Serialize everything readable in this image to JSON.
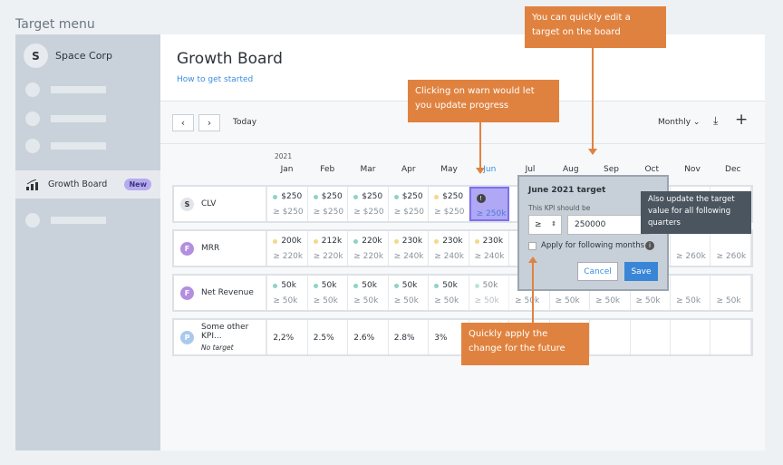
{
  "menu_title": "Target menu",
  "sidebar": {
    "org_initial": "S",
    "org_name": "Space Corp",
    "active_item": {
      "label": "Growth Board",
      "badge": "New",
      "icon": "bar-chart-icon"
    }
  },
  "header": {
    "title": "Growth Board",
    "help_link": "How to get started"
  },
  "toolbar": {
    "prev": "‹",
    "next": "›",
    "today": "Today",
    "period": "Monthly",
    "period_chevron": "⌄",
    "download": "⤓",
    "add": "+"
  },
  "year": "2021",
  "months": [
    "Jan",
    "Feb",
    "Mar",
    "Apr",
    "May",
    "Jun",
    "Jul",
    "Aug",
    "Sep",
    "Oct",
    "Nov",
    "Dec"
  ],
  "colors": {
    "on_track": "#8fd3c4",
    "at_risk": "#f3d98a",
    "accent": "#e0823f"
  },
  "rows": [
    {
      "initial": "S",
      "avatar_color": "#e1e5ea",
      "avatar_text": "#333",
      "name": "CLV",
      "sub": "",
      "cells": [
        {
          "v": "$250",
          "s": "on_track",
          "t": "≥ $250"
        },
        {
          "v": "$250",
          "s": "on_track",
          "t": "≥ $250"
        },
        {
          "v": "$250",
          "s": "on_track",
          "t": "≥ $250"
        },
        {
          "v": "$250",
          "s": "on_track",
          "t": "≥ $250"
        },
        {
          "v": "$250",
          "s": "at_risk",
          "t": "≥ $250"
        },
        {
          "warn": true,
          "t": "≥ 250k"
        },
        null,
        null,
        null,
        null,
        null,
        null
      ]
    },
    {
      "initial": "F",
      "avatar_color": "#b48ee0",
      "avatar_text": "#fff",
      "name": "MRR",
      "sub": "",
      "cells": [
        {
          "v": "200k",
          "s": "at_risk",
          "t": "≥ 220k"
        },
        {
          "v": "212k",
          "s": "at_risk",
          "t": "≥ 220k"
        },
        {
          "v": "220k",
          "s": "on_track",
          "t": "≥ 220k"
        },
        {
          "v": "230k",
          "s": "at_risk",
          "t": "≥ 240k"
        },
        {
          "v": "230k",
          "s": "at_risk",
          "t": "≥ 240k"
        },
        {
          "v": "230k",
          "s": "at_risk",
          "t": "≥ 240k"
        },
        null,
        null,
        null,
        null,
        {
          "t": "≥ 260k"
        },
        {
          "t": "≥ 260k"
        }
      ]
    },
    {
      "initial": "F",
      "avatar_color": "#b48ee0",
      "avatar_text": "#fff",
      "name": "Net Revenue",
      "sub": "",
      "cells": [
        {
          "v": "50k",
          "s": "on_track",
          "t": "≥ 50k"
        },
        {
          "v": "50k",
          "s": "on_track",
          "t": "≥ 50k"
        },
        {
          "v": "50k",
          "s": "on_track",
          "t": "≥ 50k"
        },
        {
          "v": "50k",
          "s": "on_track",
          "t": "≥ 50k"
        },
        {
          "v": "50k",
          "s": "on_track",
          "t": "≥ 50k"
        },
        {
          "v": "50k",
          "s": "on_track",
          "t": "≥ 50k"
        },
        {
          "t": "≥ 50k"
        },
        {
          "t": "≥ 50k"
        },
        {
          "t": "≥ 50k"
        },
        {
          "t": "≥ 50k"
        },
        {
          "t": "≥ 50k"
        },
        {
          "t": "≥ 50k"
        }
      ]
    },
    {
      "initial": "P",
      "avatar_color": "#a9c9ee",
      "avatar_text": "#fff",
      "name": "Some other KPI...",
      "sub": "No target",
      "cells": [
        {
          "v": "2,2%"
        },
        {
          "v": "2.5%"
        },
        {
          "v": "2.6%"
        },
        {
          "v": "2.8%"
        },
        {
          "v": "3%"
        },
        null,
        null,
        null,
        null,
        null,
        null,
        null
      ]
    }
  ],
  "popover": {
    "title": "June 2021 target",
    "label": "This KPI should be",
    "operator": "≥",
    "value": "250000",
    "checkbox_label": "Apply for following months",
    "cancel": "Cancel",
    "save": "Save"
  },
  "tooltip": "Also update the target value for all following quarters",
  "callouts": {
    "edit": "You can quickly edit a target on the board",
    "warn": "Clicking on warn would let you update progress",
    "apply": "Quickly apply the change for the future"
  }
}
